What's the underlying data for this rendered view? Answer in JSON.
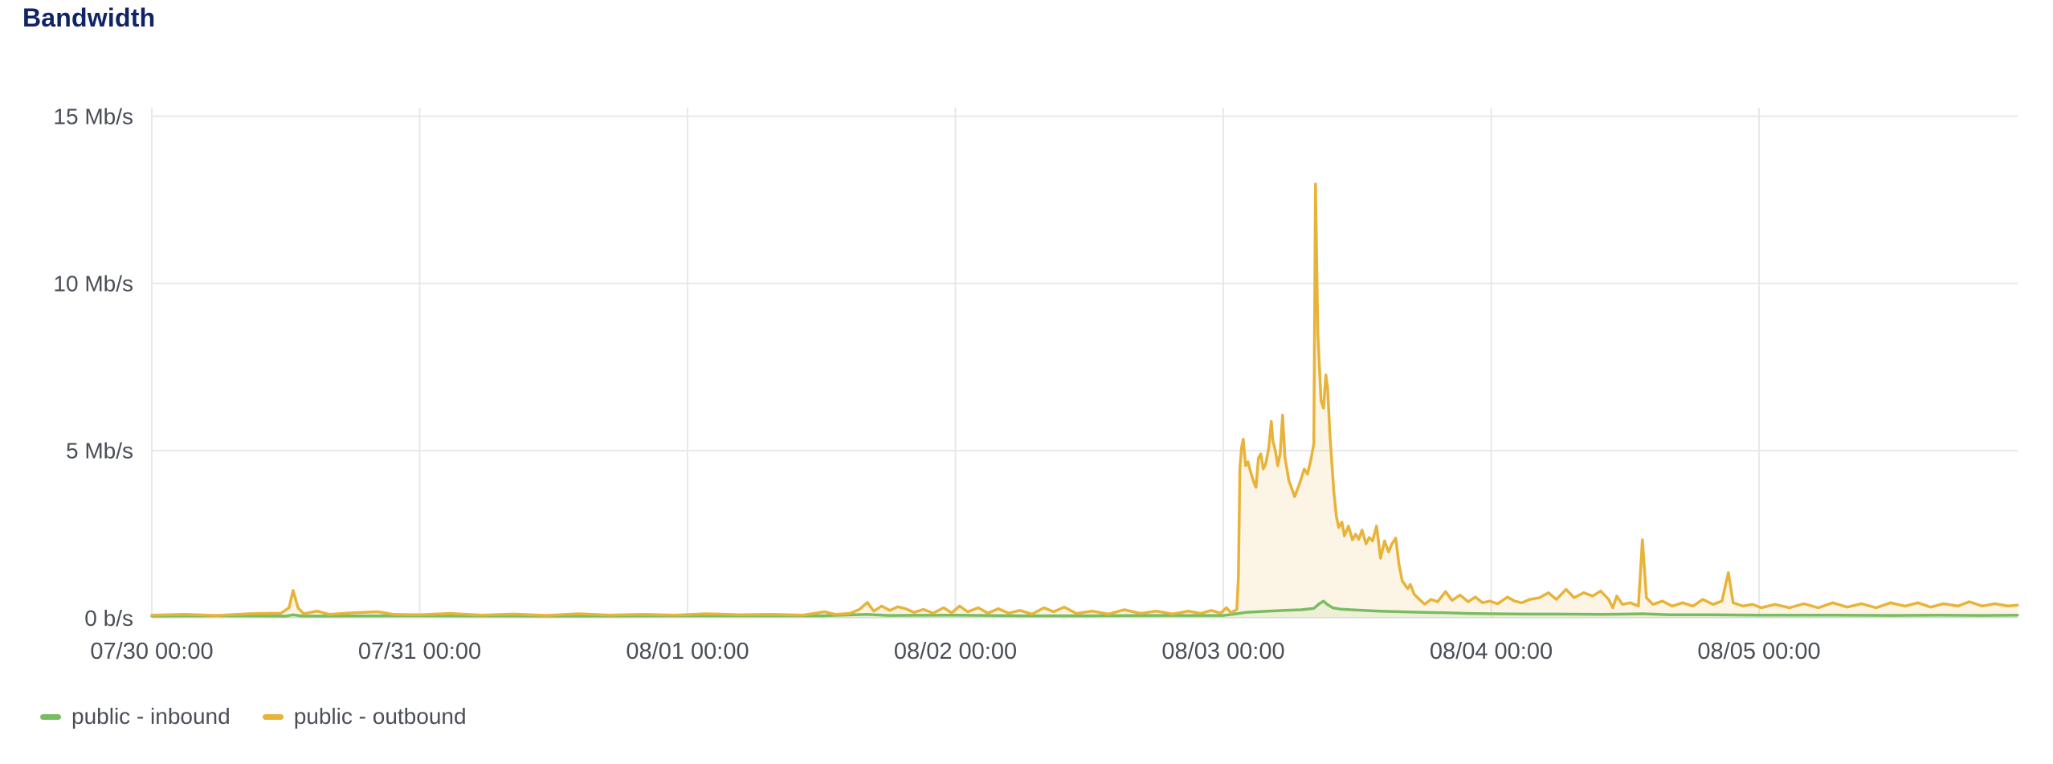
{
  "title": "Bandwidth",
  "colors": {
    "title": "#0f2467",
    "axis_text": "#4a4e57",
    "gridline": "#e7e8ea",
    "background": "#ffffff",
    "inbound": "#79bd62",
    "outbound": "#e8b339"
  },
  "legend": [
    {
      "label": "public - inbound",
      "color": "#79bd62"
    },
    {
      "label": "public - outbound",
      "color": "#e8b339"
    }
  ],
  "chart_data": {
    "type": "line",
    "title": "Bandwidth",
    "xlabel": "",
    "ylabel": "",
    "x_unit": "hours since 07/30 00:00",
    "y_unit": "Mb/s",
    "xlim": [
      0,
      167.17
    ],
    "ylim": [
      0,
      15.35
    ],
    "grid": true,
    "legend_position": "bottom-left",
    "x_ticks": [
      {
        "t": 0,
        "label": "07/30 00:00"
      },
      {
        "t": 24,
        "label": "07/31 00:00"
      },
      {
        "t": 48,
        "label": "08/01 00:00"
      },
      {
        "t": 72,
        "label": "08/02 00:00"
      },
      {
        "t": 96,
        "label": "08/03 00:00"
      },
      {
        "t": 120,
        "label": "08/04 00:00"
      },
      {
        "t": 144,
        "label": "08/05 00:00"
      }
    ],
    "y_ticks": [
      {
        "v": 0,
        "label": "0 b/s"
      },
      {
        "v": 5,
        "label": "5 Mb/s"
      },
      {
        "v": 10,
        "label": "10 Mb/s"
      },
      {
        "v": 15,
        "label": "15 Mb/s"
      }
    ],
    "series": [
      {
        "name": "public - inbound",
        "color": "#79bd62",
        "fill_opacity": 0.1,
        "points": [
          [
            0,
            0.05
          ],
          [
            6,
            0.06
          ],
          [
            12,
            0.05
          ],
          [
            12.66,
            0.09
          ],
          [
            13.5,
            0.05
          ],
          [
            24,
            0.06
          ],
          [
            36,
            0.05
          ],
          [
            48,
            0.06
          ],
          [
            60,
            0.06
          ],
          [
            64.1,
            0.1
          ],
          [
            66,
            0.07
          ],
          [
            72,
            0.08
          ],
          [
            78,
            0.06
          ],
          [
            84,
            0.06
          ],
          [
            90,
            0.07
          ],
          [
            96,
            0.07
          ],
          [
            97.35,
            0.13
          ],
          [
            98,
            0.16
          ],
          [
            99,
            0.18
          ],
          [
            100,
            0.2
          ],
          [
            101.5,
            0.22
          ],
          [
            103,
            0.24
          ],
          [
            104.11,
            0.28
          ],
          [
            104.6,
            0.42
          ],
          [
            104.98,
            0.5
          ],
          [
            105.3,
            0.4
          ],
          [
            105.8,
            0.3
          ],
          [
            106.5,
            0.26
          ],
          [
            108,
            0.23
          ],
          [
            110,
            0.2
          ],
          [
            112,
            0.18
          ],
          [
            114,
            0.16
          ],
          [
            116,
            0.15
          ],
          [
            118,
            0.13
          ],
          [
            120,
            0.12
          ],
          [
            123,
            0.11
          ],
          [
            126,
            0.11
          ],
          [
            130,
            0.1
          ],
          [
            133.55,
            0.12
          ],
          [
            136,
            0.09
          ],
          [
            140,
            0.09
          ],
          [
            144.2,
            0.08
          ],
          [
            150,
            0.08
          ],
          [
            156,
            0.07
          ],
          [
            160,
            0.08
          ],
          [
            164,
            0.07
          ],
          [
            167.15,
            0.08
          ]
        ]
      },
      {
        "name": "public - outbound",
        "color": "#e8b339",
        "fill_opacity": 0.13,
        "points": [
          [
            0,
            0.08
          ],
          [
            2.95,
            0.1
          ],
          [
            5.83,
            0.07
          ],
          [
            8.71,
            0.12
          ],
          [
            11.58,
            0.14
          ],
          [
            12.3,
            0.3
          ],
          [
            12.66,
            0.82
          ],
          [
            13.1,
            0.3
          ],
          [
            13.6,
            0.12
          ],
          [
            14.82,
            0.2
          ],
          [
            15.9,
            0.1
          ],
          [
            18.06,
            0.15
          ],
          [
            20.22,
            0.18
          ],
          [
            21.66,
            0.1
          ],
          [
            24.03,
            0.09
          ],
          [
            26.69,
            0.13
          ],
          [
            29.57,
            0.08
          ],
          [
            32.45,
            0.11
          ],
          [
            35.33,
            0.07
          ],
          [
            38.21,
            0.12
          ],
          [
            41.08,
            0.08
          ],
          [
            43.96,
            0.1
          ],
          [
            46.84,
            0.08
          ],
          [
            49.72,
            0.12
          ],
          [
            52.6,
            0.09
          ],
          [
            55.47,
            0.1
          ],
          [
            58.35,
            0.08
          ],
          [
            60.29,
            0.18
          ],
          [
            61.23,
            0.1
          ],
          [
            62.52,
            0.13
          ],
          [
            63.39,
            0.25
          ],
          [
            64.11,
            0.46
          ],
          [
            64.68,
            0.2
          ],
          [
            65.4,
            0.35
          ],
          [
            66.12,
            0.22
          ],
          [
            66.84,
            0.33
          ],
          [
            67.56,
            0.27
          ],
          [
            68.28,
            0.16
          ],
          [
            69.14,
            0.25
          ],
          [
            70.01,
            0.14
          ],
          [
            70.94,
            0.3
          ],
          [
            71.66,
            0.15
          ],
          [
            72.38,
            0.35
          ],
          [
            73.1,
            0.18
          ],
          [
            74.04,
            0.3
          ],
          [
            74.9,
            0.14
          ],
          [
            75.84,
            0.27
          ],
          [
            76.77,
            0.14
          ],
          [
            77.78,
            0.22
          ],
          [
            78.86,
            0.11
          ],
          [
            79.94,
            0.3
          ],
          [
            80.8,
            0.18
          ],
          [
            81.74,
            0.32
          ],
          [
            82.82,
            0.13
          ],
          [
            84.26,
            0.2
          ],
          [
            85.69,
            0.11
          ],
          [
            87.13,
            0.24
          ],
          [
            88.57,
            0.13
          ],
          [
            90.01,
            0.2
          ],
          [
            91.45,
            0.11
          ],
          [
            92.89,
            0.2
          ],
          [
            93.97,
            0.13
          ],
          [
            94.91,
            0.22
          ],
          [
            95.77,
            0.14
          ],
          [
            96.27,
            0.3
          ],
          [
            96.7,
            0.15
          ],
          [
            97.21,
            0.25
          ],
          [
            97.35,
            1.2
          ],
          [
            97.49,
            4.5
          ],
          [
            97.64,
            5.1
          ],
          [
            97.78,
            5.34
          ],
          [
            98,
            4.55
          ],
          [
            98.21,
            4.66
          ],
          [
            98.5,
            4.3
          ],
          [
            98.79,
            4
          ],
          [
            98.93,
            3.9
          ],
          [
            99.15,
            4.78
          ],
          [
            99.36,
            4.9
          ],
          [
            99.58,
            4.45
          ],
          [
            99.8,
            4.6
          ],
          [
            100.08,
            5.1
          ],
          [
            100.3,
            5.87
          ],
          [
            100.44,
            5.3
          ],
          [
            100.66,
            5
          ],
          [
            100.88,
            4.55
          ],
          [
            101.09,
            4.9
          ],
          [
            101.31,
            6.06
          ],
          [
            101.52,
            4.8
          ],
          [
            101.88,
            4.1
          ],
          [
            102.39,
            3.62
          ],
          [
            102.82,
            4
          ],
          [
            103.25,
            4.45
          ],
          [
            103.54,
            4.3
          ],
          [
            103.83,
            4.7
          ],
          [
            104.11,
            5.2
          ],
          [
            104.26,
            12.97
          ],
          [
            104.47,
            8.5
          ],
          [
            104.76,
            6.5
          ],
          [
            104.98,
            6.27
          ],
          [
            105.19,
            7.26
          ],
          [
            105.34,
            6.9
          ],
          [
            105.55,
            5.5
          ],
          [
            105.77,
            4.4
          ],
          [
            105.91,
            3.75
          ],
          [
            106.13,
            3.03
          ],
          [
            106.34,
            2.7
          ],
          [
            106.63,
            2.86
          ],
          [
            106.85,
            2.45
          ],
          [
            107.21,
            2.74
          ],
          [
            107.57,
            2.33
          ],
          [
            107.86,
            2.5
          ],
          [
            108.14,
            2.35
          ],
          [
            108.43,
            2.62
          ],
          [
            108.79,
            2.21
          ],
          [
            109.08,
            2.4
          ],
          [
            109.37,
            2.3
          ],
          [
            109.73,
            2.74
          ],
          [
            110.09,
            1.78
          ],
          [
            110.45,
            2.3
          ],
          [
            110.81,
            1.97
          ],
          [
            111.09,
            2.2
          ],
          [
            111.45,
            2.38
          ],
          [
            111.74,
            1.6
          ],
          [
            112.03,
            1.1
          ],
          [
            112.53,
            0.87
          ],
          [
            112.75,
            1
          ],
          [
            113.11,
            0.7
          ],
          [
            113.47,
            0.58
          ],
          [
            114.04,
            0.41
          ],
          [
            114.62,
            0.55
          ],
          [
            115.2,
            0.48
          ],
          [
            115.92,
            0.78
          ],
          [
            116.49,
            0.52
          ],
          [
            117.21,
            0.68
          ],
          [
            117.93,
            0.48
          ],
          [
            118.58,
            0.62
          ],
          [
            119.23,
            0.45
          ],
          [
            119.87,
            0.5
          ],
          [
            120.59,
            0.42
          ],
          [
            121.46,
            0.62
          ],
          [
            122.11,
            0.5
          ],
          [
            122.75,
            0.45
          ],
          [
            123.47,
            0.55
          ],
          [
            124.34,
            0.6
          ],
          [
            125.13,
            0.75
          ],
          [
            125.85,
            0.55
          ],
          [
            126.71,
            0.85
          ],
          [
            127.43,
            0.6
          ],
          [
            128.29,
            0.75
          ],
          [
            129.09,
            0.65
          ],
          [
            129.81,
            0.8
          ],
          [
            130.53,
            0.55
          ],
          [
            130.89,
            0.3
          ],
          [
            131.25,
            0.65
          ],
          [
            131.75,
            0.4
          ],
          [
            132.47,
            0.45
          ],
          [
            133.19,
            0.35
          ],
          [
            133.55,
            2.33
          ],
          [
            133.91,
            0.6
          ],
          [
            134.49,
            0.4
          ],
          [
            135.35,
            0.5
          ],
          [
            136.21,
            0.35
          ],
          [
            137.15,
            0.45
          ],
          [
            138.08,
            0.35
          ],
          [
            138.95,
            0.55
          ],
          [
            139.88,
            0.4
          ],
          [
            140.67,
            0.5
          ],
          [
            141.25,
            1.35
          ],
          [
            141.68,
            0.45
          ],
          [
            142.55,
            0.35
          ],
          [
            143.41,
            0.4
          ],
          [
            144.2,
            0.3
          ],
          [
            145.42,
            0.4
          ],
          [
            146.72,
            0.3
          ],
          [
            148.01,
            0.42
          ],
          [
            149.31,
            0.3
          ],
          [
            150.6,
            0.45
          ],
          [
            151.9,
            0.32
          ],
          [
            153.19,
            0.42
          ],
          [
            154.49,
            0.3
          ],
          [
            155.78,
            0.45
          ],
          [
            157.08,
            0.35
          ],
          [
            158.23,
            0.45
          ],
          [
            159.38,
            0.32
          ],
          [
            160.53,
            0.42
          ],
          [
            161.83,
            0.35
          ],
          [
            162.84,
            0.48
          ],
          [
            163.99,
            0.35
          ],
          [
            165.14,
            0.42
          ],
          [
            166.29,
            0.35
          ],
          [
            167.15,
            0.38
          ]
        ]
      }
    ]
  }
}
